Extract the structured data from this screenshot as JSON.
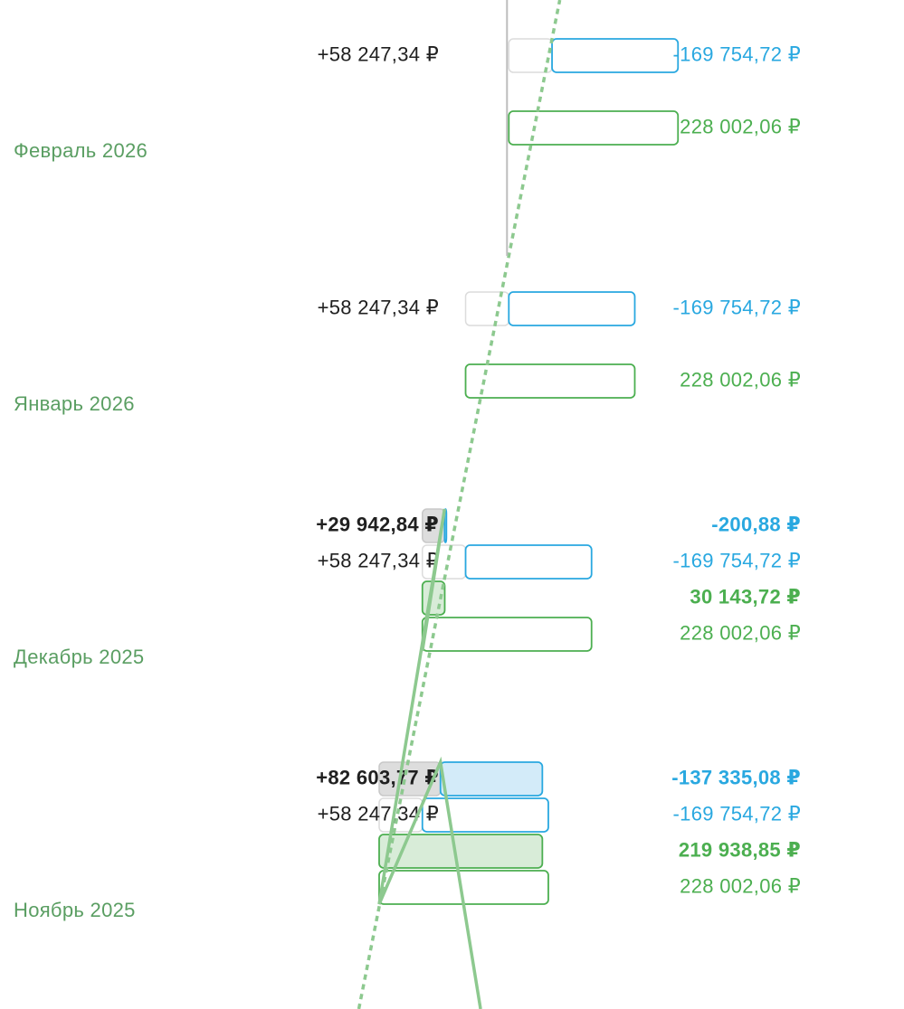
{
  "colors": {
    "income": "#4caf50",
    "expense": "#29a8e0",
    "balance": "#202020",
    "balance_fill": "#dddddd",
    "month_label": "#5a9e62",
    "trend": "#8dc98f"
  },
  "chart_data": {
    "type": "bar",
    "orientation": "horizontal",
    "x_units": "₽",
    "grid": false,
    "months": [
      {
        "label": "Февраль 2026",
        "rows": [
          {
            "kind": "plan",
            "balance": 58247.34,
            "balance_label": "+58 247,34 ₽",
            "expense": -169754.72,
            "expense_label": "-169 754,72 ₽",
            "income": 228002.06,
            "income_label": "228 002,06 ₽"
          }
        ]
      },
      {
        "label": "Январь 2026",
        "rows": [
          {
            "kind": "plan",
            "balance": 58247.34,
            "balance_label": "+58 247,34 ₽",
            "expense": -169754.72,
            "expense_label": "-169 754,72 ₽",
            "income": 228002.06,
            "income_label": "228 002,06 ₽"
          }
        ]
      },
      {
        "label": "Декабрь 2025",
        "rows": [
          {
            "kind": "fact",
            "balance": 29942.84,
            "balance_label": "+29 942,84 ₽",
            "expense": -200.88,
            "expense_label": "-200,88 ₽",
            "income": 30143.72,
            "income_label": "30 143,72 ₽"
          },
          {
            "kind": "plan",
            "balance": 58247.34,
            "balance_label": "+58 247,34 ₽",
            "expense": -169754.72,
            "expense_label": "-169 754,72 ₽",
            "income": 228002.06,
            "income_label": "228 002,06 ₽"
          }
        ]
      },
      {
        "label": "Ноябрь 2025",
        "rows": [
          {
            "kind": "fact",
            "balance": 82603.77,
            "balance_label": "+82 603,77 ₽",
            "expense": -137335.08,
            "expense_label": "-137 335,08 ₽",
            "income": 219938.85,
            "income_label": "219 938,85 ₽"
          },
          {
            "kind": "plan",
            "balance": 58247.34,
            "balance_label": "+58 247,34 ₽",
            "expense": -169754.72,
            "expense_label": "-169 754,72 ₽",
            "income": 228002.06,
            "income_label": "228 002,06 ₽"
          }
        ]
      }
    ]
  }
}
